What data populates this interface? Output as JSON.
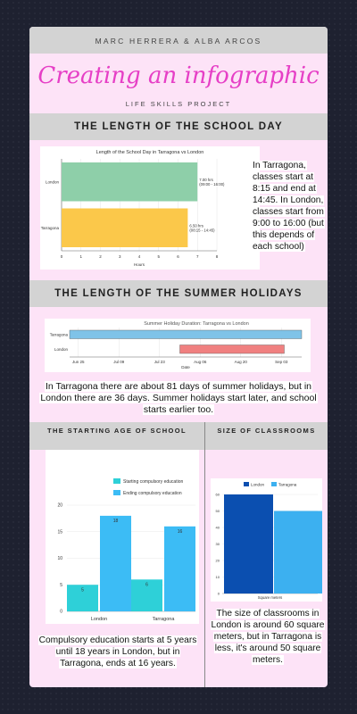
{
  "header": {
    "authors": "MARC HERRERA & ALBA ARCOS",
    "title": "Creating an infographic",
    "subtitle": "LIFE SKILLS PROJECT"
  },
  "section1": {
    "heading": "THE LENGTH OF THE SCHOOL DAY",
    "text": "In Tarragona, classes start at 8:15 and end at 14:45. In London, classes start from 9:00 to 16:00 (but this depends of each school)"
  },
  "section2": {
    "heading": "THE LENGTH OF THE SUMMER HOLIDAYS",
    "text": "In Tarragona there are about 81 days of summer holidays, but in London there are 36 days. Summer holidays start later, and school starts earlier too."
  },
  "section3": {
    "heading": "THE STARTING AGE OF SCHOOL",
    "text": "Compulsory education starts at 5 years until 18 years in London, but in Tarragona, ends at 16 years."
  },
  "section4": {
    "heading": "SIZE OF CLASSROOMS",
    "text": "The size of classrooms in London is around 60 square meters, but in Tarragona is less, it's around 50 square meters."
  },
  "chart_data": [
    {
      "type": "bar",
      "orientation": "horizontal",
      "title": "Length of the School Day in Tarragona vs London",
      "categories": [
        "London",
        "Tarragona"
      ],
      "values": [
        7.0,
        6.5
      ],
      "data_labels": [
        "7.00 hrs\n(09:00 - 16:00)",
        "6.50 hrs\n(08:15 - 14:45)"
      ],
      "colors": [
        "#8ecfa9",
        "#fbc84a"
      ],
      "xlabel": "Hours",
      "xlim": [
        0,
        8
      ],
      "xticks": [
        "0",
        "1",
        "2",
        "3",
        "4",
        "5",
        "6",
        "7",
        "8"
      ]
    },
    {
      "type": "bar",
      "orientation": "horizontal-range",
      "title": "Summer Holiday Duration: Tarragona vs London",
      "categories": [
        "Tarragona",
        "London"
      ],
      "ranges": [
        [
          "Jun 22",
          "Sep 10"
        ],
        [
          "Jul 30",
          "Sep 04"
        ]
      ],
      "colors": [
        "#7fc3e8",
        "#f08080"
      ],
      "xlabel": "Date",
      "xticks": [
        "Jun 25",
        "Jul 09",
        "Jul 23",
        "Aug 06",
        "Aug 20",
        "Sep 03"
      ]
    },
    {
      "type": "bar",
      "title": "",
      "categories": [
        "London",
        "Tarragona"
      ],
      "series": [
        {
          "name": "Starting compulsory education",
          "values": [
            5,
            6
          ],
          "color": "#2ed0d8"
        },
        {
          "name": "Ending compulsory education",
          "values": [
            18,
            16
          ],
          "color": "#3cbcf5"
        }
      ],
      "ylim": [
        0,
        20
      ],
      "yticks": [
        "0",
        "5",
        "10",
        "15",
        "20"
      ]
    },
    {
      "type": "bar",
      "title": "",
      "categories": [
        "Square meters"
      ],
      "series": [
        {
          "name": "London",
          "values": [
            60
          ],
          "color": "#0b4fb0"
        },
        {
          "name": "Tarragona",
          "values": [
            50
          ],
          "color": "#3cb0f0"
        }
      ],
      "ylim": [
        0,
        60
      ],
      "yticks": [
        "0",
        "10",
        "20",
        "30",
        "40",
        "50",
        "60"
      ]
    }
  ]
}
